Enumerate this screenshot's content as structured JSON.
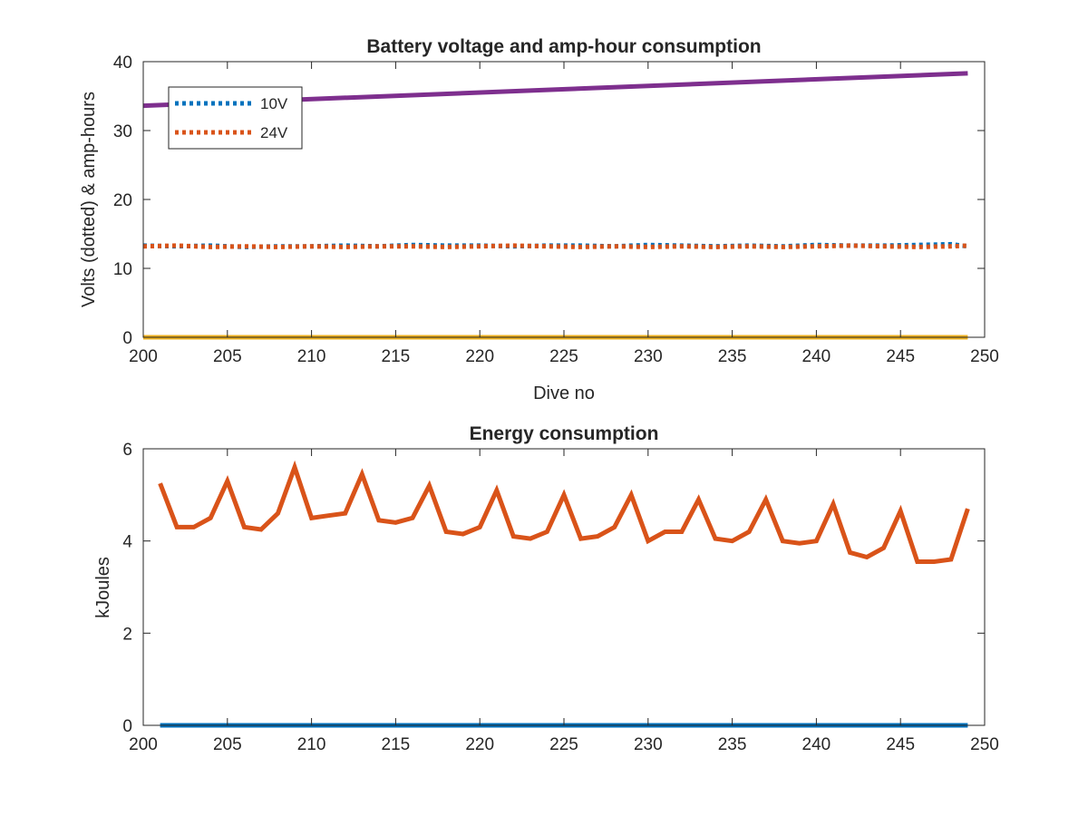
{
  "chart_data": [
    {
      "type": "line",
      "title": "Battery voltage and amp-hour consumption",
      "xlabel": "Dive no",
      "ylabel": "Volts (dotted) & amp-hours",
      "xlim": [
        200,
        250
      ],
      "ylim": [
        0,
        40
      ],
      "xticks": [
        "200",
        "205",
        "210",
        "215",
        "220",
        "225",
        "230",
        "235",
        "240",
        "245",
        "250"
      ],
      "yticks": [
        "0",
        "10",
        "20",
        "30",
        "40"
      ],
      "grid": false,
      "legend_position": "top-left",
      "series": [
        {
          "name": "10V",
          "style": "dotted",
          "color": "#0072BD",
          "x": [
            200,
            202,
            204,
            206,
            208,
            210,
            212,
            214,
            216,
            218,
            220,
            222,
            224,
            226,
            228,
            230,
            232,
            234,
            236,
            238,
            240,
            242,
            244,
            246,
            248,
            249
          ],
          "y": [
            13.3,
            13.2,
            13.3,
            13.1,
            13.2,
            13.2,
            13.3,
            13.2,
            13.4,
            13.3,
            13.3,
            13.2,
            13.3,
            13.3,
            13.2,
            13.4,
            13.3,
            13.2,
            13.3,
            13.2,
            13.4,
            13.3,
            13.3,
            13.4,
            13.5,
            13.2
          ]
        },
        {
          "name": "24V",
          "style": "dotted",
          "color": "#D95319",
          "x": [
            200,
            202,
            204,
            206,
            208,
            210,
            212,
            214,
            216,
            218,
            220,
            222,
            224,
            226,
            228,
            230,
            232,
            234,
            236,
            238,
            240,
            242,
            244,
            246,
            248,
            249
          ],
          "y": [
            13.2,
            13.3,
            13.1,
            13.2,
            13.1,
            13.2,
            13.1,
            13.2,
            13.2,
            13.1,
            13.2,
            13.3,
            13.2,
            13.1,
            13.2,
            13.1,
            13.2,
            13.1,
            13.2,
            13.1,
            13.2,
            13.3,
            13.2,
            13.1,
            13.2,
            13.3
          ]
        },
        {
          "style": "solid",
          "color": "#EDB120",
          "x": [
            200,
            249
          ],
          "y": [
            0,
            0
          ]
        },
        {
          "style": "solid",
          "color": "#7E2F8E",
          "x": [
            200,
            249
          ],
          "y": [
            33.6,
            38.3
          ]
        }
      ]
    },
    {
      "type": "line",
      "title": "Energy consumption",
      "xlabel": "",
      "ylabel": "kJoules",
      "xlim": [
        200,
        250
      ],
      "ylim": [
        0,
        6
      ],
      "xticks": [
        "200",
        "205",
        "210",
        "215",
        "220",
        "225",
        "230",
        "235",
        "240",
        "245",
        "250"
      ],
      "yticks": [
        "0",
        "2",
        "4",
        "6"
      ],
      "grid": false,
      "series": [
        {
          "style": "solid",
          "color": "#0072BD",
          "x": [
            201,
            249
          ],
          "y": [
            0,
            0
          ]
        },
        {
          "style": "solid",
          "color": "#D95319",
          "x": [
            201,
            202,
            203,
            204,
            205,
            206,
            207,
            208,
            209,
            210,
            211,
            212,
            213,
            214,
            215,
            216,
            217,
            218,
            219,
            220,
            221,
            222,
            223,
            224,
            225,
            226,
            227,
            228,
            229,
            230,
            231,
            232,
            233,
            234,
            235,
            236,
            237,
            238,
            239,
            240,
            241,
            242,
            243,
            244,
            245,
            246,
            247,
            248,
            249
          ],
          "y": [
            5.25,
            4.3,
            4.3,
            4.5,
            5.3,
            4.3,
            4.25,
            4.6,
            5.6,
            4.5,
            4.55,
            4.6,
            5.45,
            4.45,
            4.4,
            4.5,
            5.2,
            4.2,
            4.15,
            4.3,
            5.1,
            4.1,
            4.05,
            4.2,
            5.0,
            4.05,
            4.1,
            4.3,
            5.0,
            4.0,
            4.2,
            4.2,
            4.9,
            4.05,
            4.0,
            4.2,
            4.9,
            4.0,
            3.95,
            4.0,
            4.8,
            3.75,
            3.65,
            3.85,
            4.65,
            3.55,
            3.55,
            3.6,
            4.7
          ]
        }
      ]
    }
  ]
}
